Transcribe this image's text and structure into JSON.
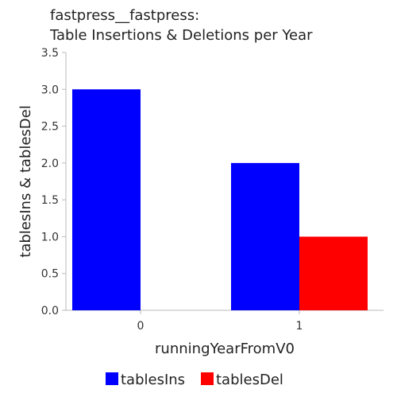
{
  "chart_data": {
    "type": "bar",
    "title_line1": "fastpress__fastpress:",
    "title_line2": "Table Insertions & Deletions per Year",
    "xlabel": "runningYearFromV0",
    "ylabel": "tablesIns & tablesDel",
    "categories": [
      "0",
      "1"
    ],
    "series": [
      {
        "name": "tablesIns",
        "color": "#0000ff",
        "values": [
          3.0,
          2.0
        ]
      },
      {
        "name": "tablesDel",
        "color": "#ff0000",
        "values": [
          0.0,
          1.0
        ]
      }
    ],
    "ylim": [
      0,
      3.5
    ],
    "yticks": [
      "0.0",
      "0.5",
      "1.0",
      "1.5",
      "2.0",
      "2.5",
      "3.0",
      "3.5"
    ],
    "grid": false,
    "legend_position": "bottom"
  }
}
